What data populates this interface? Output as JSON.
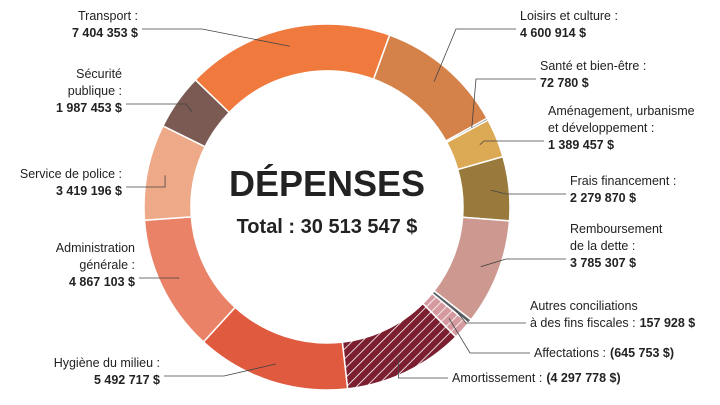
{
  "chart_data": {
    "type": "donut",
    "title": "DÉPENSES",
    "subtitle": "Total : 30 513 547 $",
    "categories": [
      "Loisirs et culture :",
      "Santé et bien-être :",
      "Aménagement, urbanisme\net développement :",
      "Frais financement :",
      "Remboursement\nde la dette :",
      "Autres conciliations\nà des fins fiscales :",
      "Affectations :",
      "Amortissement :",
      "Hygiène du milieu :",
      "Administration\ngénérale :",
      "Service de police :",
      "Sécurité\npublique :",
      "Transport :"
    ],
    "values": [
      4600914,
      72780,
      1389457,
      2279870,
      3785307,
      157928,
      -645753,
      -4297778,
      5492717,
      4867103,
      3419196,
      1987453,
      7404353
    ],
    "value_labels": [
      "4 600 914 $",
      "72 780 $",
      "1 389 457 $",
      "2 279 870 $",
      "3 785 307 $",
      "157 928 $",
      "(645 753 $)",
      "(4 297 778 $)",
      "5 492 717 $",
      "4 867 103 $",
      "3 419 196 $",
      "1 987 453 $",
      "7 404 353 $"
    ],
    "colors": [
      "#d4814a",
      "#555555",
      "#dcaa55",
      "#9a7a3c",
      "#cc9890",
      "#5b5f63",
      "#d59aa0",
      "#7a1e30",
      "#e05a40",
      "#e98266",
      "#eeaa88",
      "#7a5a52",
      "#f07a3e"
    ],
    "hatched": [
      false,
      false,
      false,
      false,
      false,
      false,
      true,
      true,
      false,
      false,
      false,
      false,
      false
    ]
  }
}
